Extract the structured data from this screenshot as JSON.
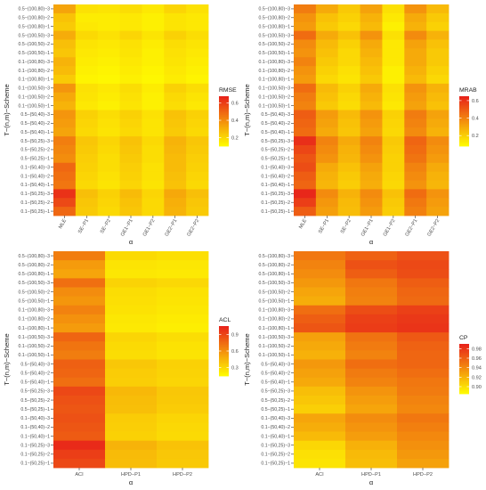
{
  "chart_data": [
    {
      "type": "heatmap",
      "xlabel": "α",
      "ylabel": "T−(n,m)−Scheme",
      "legend_title": "RMSE",
      "legend_ticks": [
        0.2,
        0.4,
        0.6
      ],
      "legend_range": [
        0.1,
        0.68
      ],
      "legend_placement": "right",
      "color_low": "#ffff00",
      "color_high": "#e8231a",
      "grid": false,
      "x": [
        "MLE",
        "SE−P1",
        "SE−P2",
        "GE1−P1",
        "GE1−P2",
        "GE2−P1",
        "GE2−P2"
      ],
      "y": [
        "0.5−(100,80)−3",
        "0.5−(100,80)−2",
        "0.5−(100,80)−1",
        "0.5−(100,50)−3",
        "0.5−(100,50)−2",
        "0.5−(100,50)−1",
        "0.1−(100,80)−3",
        "0.1−(100,80)−2",
        "0.1−(100,80)−1",
        "0.1−(100,50)−3",
        "0.1−(100,50)−2",
        "0.1−(100,50)−1",
        "0.5−(50,40)−3",
        "0.5−(50,40)−2",
        "0.5−(50,40)−1",
        "0.5−(50,25)−3",
        "0.5−(50,25)−2",
        "0.5−(50,25)−1",
        "0.1−(50,40)−3",
        "0.1−(50,40)−2",
        "0.1−(50,40)−1",
        "0.1−(50,25)−3",
        "0.1−(50,25)−2",
        "0.1−(50,25)−1"
      ],
      "z": [
        [
          0.34,
          0.18,
          0.17,
          0.19,
          0.16,
          0.21,
          0.18
        ],
        [
          0.26,
          0.15,
          0.15,
          0.16,
          0.14,
          0.17,
          0.16
        ],
        [
          0.24,
          0.16,
          0.15,
          0.16,
          0.14,
          0.17,
          0.16
        ],
        [
          0.32,
          0.2,
          0.18,
          0.21,
          0.17,
          0.22,
          0.19
        ],
        [
          0.27,
          0.17,
          0.16,
          0.18,
          0.15,
          0.19,
          0.17
        ],
        [
          0.25,
          0.16,
          0.15,
          0.17,
          0.14,
          0.18,
          0.16
        ],
        [
          0.3,
          0.15,
          0.14,
          0.16,
          0.14,
          0.17,
          0.15
        ],
        [
          0.28,
          0.14,
          0.13,
          0.15,
          0.13,
          0.16,
          0.14
        ],
        [
          0.24,
          0.13,
          0.12,
          0.14,
          0.12,
          0.15,
          0.13
        ],
        [
          0.38,
          0.18,
          0.16,
          0.19,
          0.15,
          0.22,
          0.19
        ],
        [
          0.33,
          0.17,
          0.15,
          0.18,
          0.14,
          0.2,
          0.17
        ],
        [
          0.3,
          0.16,
          0.14,
          0.17,
          0.14,
          0.19,
          0.16
        ],
        [
          0.38,
          0.22,
          0.19,
          0.22,
          0.18,
          0.26,
          0.22
        ],
        [
          0.36,
          0.21,
          0.18,
          0.21,
          0.17,
          0.25,
          0.21
        ],
        [
          0.34,
          0.2,
          0.17,
          0.2,
          0.17,
          0.24,
          0.2
        ],
        [
          0.44,
          0.25,
          0.21,
          0.26,
          0.2,
          0.3,
          0.25
        ],
        [
          0.42,
          0.24,
          0.2,
          0.25,
          0.19,
          0.29,
          0.24
        ],
        [
          0.4,
          0.23,
          0.19,
          0.24,
          0.19,
          0.28,
          0.23
        ],
        [
          0.5,
          0.22,
          0.19,
          0.23,
          0.18,
          0.28,
          0.22
        ],
        [
          0.48,
          0.21,
          0.18,
          0.22,
          0.18,
          0.27,
          0.21
        ],
        [
          0.46,
          0.2,
          0.17,
          0.21,
          0.17,
          0.26,
          0.2
        ],
        [
          0.64,
          0.27,
          0.22,
          0.28,
          0.21,
          0.33,
          0.27
        ],
        [
          0.58,
          0.25,
          0.21,
          0.26,
          0.2,
          0.31,
          0.25
        ],
        [
          0.5,
          0.24,
          0.2,
          0.25,
          0.2,
          0.3,
          0.24
        ]
      ]
    },
    {
      "type": "heatmap",
      "xlabel": "α",
      "ylabel": "T−(n,m)−Scheme",
      "legend_title": "MRAB",
      "legend_ticks": [
        0.2,
        0.4,
        0.6
      ],
      "legend_range": [
        0.08,
        0.65
      ],
      "legend_placement": "right",
      "color_low": "#ffff00",
      "color_high": "#e8231a",
      "grid": false,
      "x": [
        "MLE",
        "SE−P1",
        "SE−P2",
        "GE1−P1",
        "GE1−P2",
        "GE2−P1",
        "GE2−P2"
      ],
      "y": [
        "0.5−(100,80)−3",
        "0.5−(100,80)−2",
        "0.5−(100,80)−1",
        "0.5−(100,50)−3",
        "0.5−(100,50)−2",
        "0.5−(100,50)−1",
        "0.1−(100,80)−3",
        "0.1−(100,80)−2",
        "0.1−(100,80)−1",
        "0.1−(100,50)−3",
        "0.1−(100,50)−2",
        "0.1−(100,50)−1",
        "0.5−(50,40)−3",
        "0.5−(50,40)−2",
        "0.5−(50,40)−1",
        "0.5−(50,25)−3",
        "0.5−(50,25)−2",
        "0.5−(50,25)−1",
        "0.1−(50,40)−3",
        "0.1−(50,40)−2",
        "0.1−(50,40)−1",
        "0.1−(50,25)−3",
        "0.1−(50,25)−2",
        "0.1−(50,25)−1"
      ],
      "z": [
        [
          0.42,
          0.3,
          0.22,
          0.32,
          0.16,
          0.36,
          0.26
        ],
        [
          0.36,
          0.24,
          0.2,
          0.28,
          0.14,
          0.3,
          0.22
        ],
        [
          0.34,
          0.22,
          0.18,
          0.26,
          0.12,
          0.28,
          0.2
        ],
        [
          0.46,
          0.3,
          0.24,
          0.36,
          0.16,
          0.38,
          0.28
        ],
        [
          0.38,
          0.26,
          0.2,
          0.3,
          0.14,
          0.32,
          0.24
        ],
        [
          0.36,
          0.24,
          0.18,
          0.28,
          0.14,
          0.3,
          0.22
        ],
        [
          0.4,
          0.22,
          0.18,
          0.26,
          0.14,
          0.3,
          0.22
        ],
        [
          0.36,
          0.2,
          0.16,
          0.24,
          0.12,
          0.28,
          0.2
        ],
        [
          0.34,
          0.18,
          0.15,
          0.22,
          0.12,
          0.26,
          0.18
        ],
        [
          0.46,
          0.26,
          0.2,
          0.3,
          0.16,
          0.36,
          0.28
        ],
        [
          0.42,
          0.24,
          0.18,
          0.28,
          0.15,
          0.34,
          0.26
        ],
        [
          0.4,
          0.22,
          0.17,
          0.26,
          0.14,
          0.32,
          0.24
        ],
        [
          0.5,
          0.34,
          0.26,
          0.36,
          0.2,
          0.42,
          0.32
        ],
        [
          0.48,
          0.32,
          0.24,
          0.34,
          0.19,
          0.4,
          0.3
        ],
        [
          0.46,
          0.3,
          0.23,
          0.32,
          0.18,
          0.38,
          0.28
        ],
        [
          0.62,
          0.4,
          0.3,
          0.4,
          0.22,
          0.48,
          0.38
        ],
        [
          0.56,
          0.38,
          0.28,
          0.38,
          0.21,
          0.46,
          0.36
        ],
        [
          0.52,
          0.36,
          0.27,
          0.36,
          0.2,
          0.44,
          0.34
        ],
        [
          0.54,
          0.3,
          0.24,
          0.32,
          0.2,
          0.4,
          0.3
        ],
        [
          0.5,
          0.28,
          0.22,
          0.3,
          0.19,
          0.38,
          0.28
        ],
        [
          0.48,
          0.27,
          0.21,
          0.29,
          0.18,
          0.36,
          0.27
        ],
        [
          0.64,
          0.38,
          0.28,
          0.38,
          0.24,
          0.46,
          0.36
        ],
        [
          0.58,
          0.35,
          0.26,
          0.36,
          0.22,
          0.43,
          0.34
        ],
        [
          0.5,
          0.33,
          0.25,
          0.34,
          0.21,
          0.41,
          0.32
        ]
      ]
    },
    {
      "type": "heatmap",
      "xlabel": "α",
      "ylabel": "T−(n,m)−Scheme",
      "legend_title": "ACL",
      "legend_ticks": [
        0.3,
        0.6,
        0.9
      ],
      "legend_range": [
        0.15,
        1.05
      ],
      "legend_placement": "right",
      "color_low": "#ffff00",
      "color_high": "#e8231a",
      "grid": false,
      "x": [
        "ACI",
        "HPD−P1",
        "HPD−P2"
      ],
      "y": [
        "0.5−(100,80)−3",
        "0.5−(100,80)−2",
        "0.5−(100,80)−1",
        "0.5−(100,50)−3",
        "0.5−(100,50)−2",
        "0.5−(100,50)−1",
        "0.1−(100,80)−3",
        "0.1−(100,80)−2",
        "0.1−(100,80)−1",
        "0.1−(100,50)−3",
        "0.1−(100,50)−2",
        "0.1−(100,50)−1",
        "0.5−(50,40)−3",
        "0.5−(50,40)−2",
        "0.5−(50,40)−1",
        "0.5−(50,25)−3",
        "0.5−(50,25)−2",
        "0.5−(50,25)−1",
        "0.1−(50,40)−3",
        "0.1−(50,40)−2",
        "0.1−(50,40)−1",
        "0.1−(50,25)−3",
        "0.1−(50,25)−2",
        "0.1−(50,25)−1"
      ],
      "z": [
        [
          0.68,
          0.3,
          0.28
        ],
        [
          0.56,
          0.26,
          0.25
        ],
        [
          0.52,
          0.25,
          0.24
        ],
        [
          0.74,
          0.33,
          0.31
        ],
        [
          0.62,
          0.29,
          0.27
        ],
        [
          0.58,
          0.28,
          0.26
        ],
        [
          0.66,
          0.27,
          0.25
        ],
        [
          0.6,
          0.25,
          0.23
        ],
        [
          0.56,
          0.24,
          0.22
        ],
        [
          0.78,
          0.32,
          0.29
        ],
        [
          0.72,
          0.3,
          0.27
        ],
        [
          0.68,
          0.29,
          0.26
        ],
        [
          0.8,
          0.38,
          0.34
        ],
        [
          0.78,
          0.36,
          0.33
        ],
        [
          0.74,
          0.35,
          0.32
        ],
        [
          0.9,
          0.44,
          0.38
        ],
        [
          0.86,
          0.42,
          0.37
        ],
        [
          0.84,
          0.41,
          0.36
        ],
        [
          0.86,
          0.36,
          0.32
        ],
        [
          0.84,
          0.35,
          0.31
        ],
        [
          0.82,
          0.34,
          0.3
        ],
        [
          1.02,
          0.46,
          0.4
        ],
        [
          0.94,
          0.43,
          0.38
        ],
        [
          0.9,
          0.42,
          0.37
        ]
      ]
    },
    {
      "type": "heatmap",
      "xlabel": "α",
      "ylabel": "T−(n,m)−Scheme",
      "legend_title": "CP",
      "legend_ticks": [
        0.9,
        0.92,
        0.94,
        0.96,
        0.98
      ],
      "legend_range": [
        0.885,
        0.99
      ],
      "legend_placement": "right",
      "color_low": "#ffff00",
      "color_high": "#e8231a",
      "grid": false,
      "x": [
        "ACI",
        "HPD−P1",
        "HPD−P2"
      ],
      "y": [
        "0.5−(100,80)−3",
        "0.5−(100,80)−2",
        "0.5−(100,80)−1",
        "0.5−(100,50)−3",
        "0.5−(100,50)−2",
        "0.5−(100,50)−1",
        "0.1−(100,80)−3",
        "0.1−(100,80)−2",
        "0.1−(100,80)−1",
        "0.1−(100,50)−3",
        "0.1−(100,50)−2",
        "0.1−(100,50)−1",
        "0.5−(50,40)−3",
        "0.5−(50,40)−2",
        "0.5−(50,40)−1",
        "0.5−(50,25)−3",
        "0.5−(50,25)−2",
        "0.5−(50,25)−1",
        "0.1−(50,40)−3",
        "0.1−(50,40)−2",
        "0.1−(50,40)−1",
        "0.1−(50,25)−3",
        "0.1−(50,25)−2",
        "0.1−(50,25)−1"
      ],
      "z": [
        [
          0.95,
          0.96,
          0.968
        ],
        [
          0.944,
          0.968,
          0.972
        ],
        [
          0.94,
          0.962,
          0.97
        ],
        [
          0.934,
          0.95,
          0.962
        ],
        [
          0.928,
          0.946,
          0.958
        ],
        [
          0.924,
          0.944,
          0.956
        ],
        [
          0.954,
          0.97,
          0.976
        ],
        [
          0.962,
          0.976,
          0.98
        ],
        [
          0.966,
          0.978,
          0.982
        ],
        [
          0.93,
          0.952,
          0.964
        ],
        [
          0.926,
          0.948,
          0.96
        ],
        [
          0.922,
          0.944,
          0.958
        ],
        [
          0.934,
          0.954,
          0.958
        ],
        [
          0.93,
          0.948,
          0.954
        ],
        [
          0.926,
          0.944,
          0.95
        ],
        [
          0.916,
          0.936,
          0.948
        ],
        [
          0.912,
          0.932,
          0.944
        ],
        [
          0.908,
          0.928,
          0.942
        ],
        [
          0.928,
          0.94,
          0.95
        ],
        [
          0.924,
          0.936,
          0.946
        ],
        [
          0.918,
          0.932,
          0.942
        ],
        [
          0.904,
          0.922,
          0.938
        ],
        [
          0.9,
          0.918,
          0.934
        ],
        [
          0.898,
          0.916,
          0.93
        ]
      ]
    }
  ]
}
